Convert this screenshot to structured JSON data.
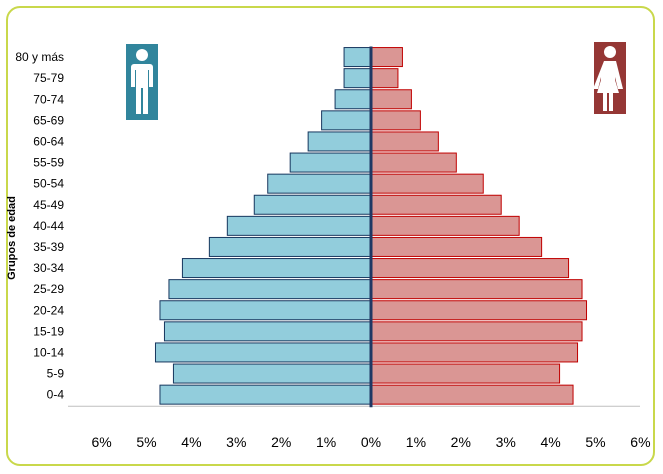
{
  "chart_data": {
    "type": "bar",
    "orientation": "horizontal",
    "layout": "population-pyramid",
    "ylabel": "Grupos de edad",
    "xlabel": "",
    "categories": [
      "0-4",
      "5-9",
      "10-14",
      "15-19",
      "20-24",
      "25-29",
      "30-34",
      "35-39",
      "40-44",
      "45-49",
      "50-54",
      "55-59",
      "60-64",
      "65-69",
      "70-74",
      "75-79",
      "80 y más"
    ],
    "series": [
      {
        "values": [
          4.7,
          4.4,
          4.8,
          4.6,
          4.7,
          4.5,
          4.2,
          3.6,
          3.2,
          2.6,
          2.3,
          1.8,
          1.4,
          1.1,
          0.8,
          0.6,
          0.6
        ],
        "color": "#92cddc",
        "side": "left",
        "icon": "male-icon"
      },
      {
        "values": [
          4.5,
          4.2,
          4.6,
          4.7,
          4.8,
          4.7,
          4.4,
          3.8,
          3.3,
          2.9,
          2.5,
          1.9,
          1.5,
          1.1,
          0.9,
          0.6,
          0.7
        ],
        "color": "#da9694",
        "side": "right",
        "icon": "female-icon"
      }
    ],
    "x_ticks": [
      "6%",
      "5%",
      "4%",
      "3%",
      "2%",
      "1%",
      "0%",
      "1%",
      "2%",
      "3%",
      "4%",
      "5%",
      "6%"
    ],
    "xlim": [
      -6,
      6
    ],
    "grid": false,
    "legend": "icons top-left (male) and top-right (female)"
  },
  "colors": {
    "frame": "#c9d84b",
    "male_bar": "#92cddc",
    "male_icon_bg": "#31859c",
    "female_bar": "#da9694",
    "female_stroke": "#c00000",
    "female_icon_bg": "#953735",
    "axis": "#1f3864"
  }
}
